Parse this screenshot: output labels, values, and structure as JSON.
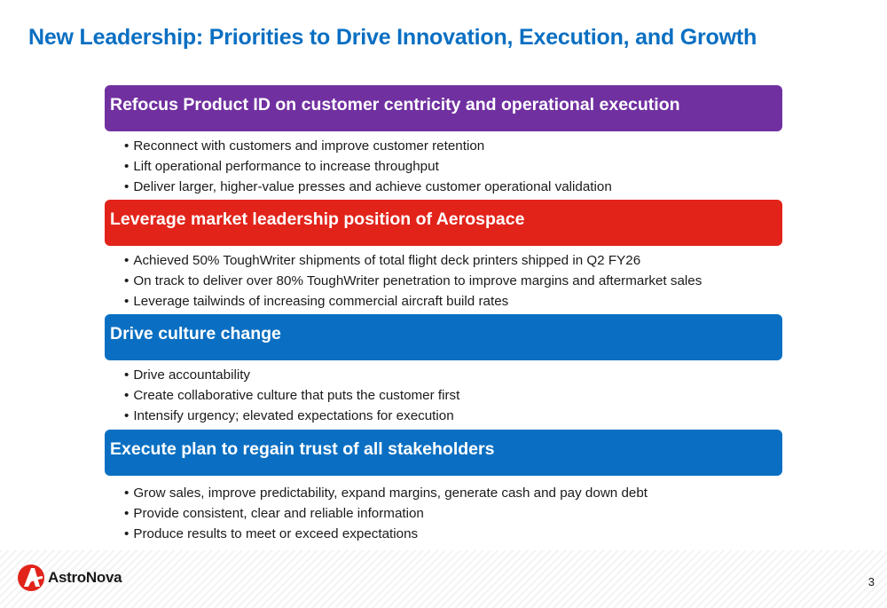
{
  "slide": {
    "title": "New Leadership: Priorities to Drive Innovation, Execution, and Growth",
    "page_number": "3"
  },
  "sections": [
    {
      "heading": "Refocus Product ID on customer centricity and operational execution",
      "color": "#7030a0",
      "bullets": [
        "Reconnect with customers and improve customer retention",
        "Lift operational performance to increase throughput",
        "Deliver larger, higher-value presses and achieve customer operational validation"
      ]
    },
    {
      "heading": "Leverage market leadership position of Aerospace",
      "color": "#e2231a",
      "bullets": [
        "Achieved 50% ToughWriter shipments of total flight deck printers shipped in Q2 FY26",
        "On track to deliver over 80% ToughWriter penetration to improve margins and aftermarket sales",
        "Leverage tailwinds of increasing commercial aircraft build rates"
      ]
    },
    {
      "heading": "Drive culture change",
      "color": "#0a6fc2",
      "bullets": [
        "Drive accountability",
        "Create collaborative culture that puts the customer first",
        "Intensify urgency; elevated expectations for execution"
      ]
    },
    {
      "heading": "Execute plan to regain trust of all stakeholders",
      "color": "#0a6fc2",
      "bullets": [
        "Grow sales, improve predictability, expand margins, generate cash and pay down debt",
        "Provide consistent, clear and reliable information",
        "Produce results to meet or exceed expectations"
      ]
    }
  ],
  "logo": {
    "name": "AstroNova",
    "icon": "astronova-logo-icon",
    "color": "#e2231a"
  }
}
